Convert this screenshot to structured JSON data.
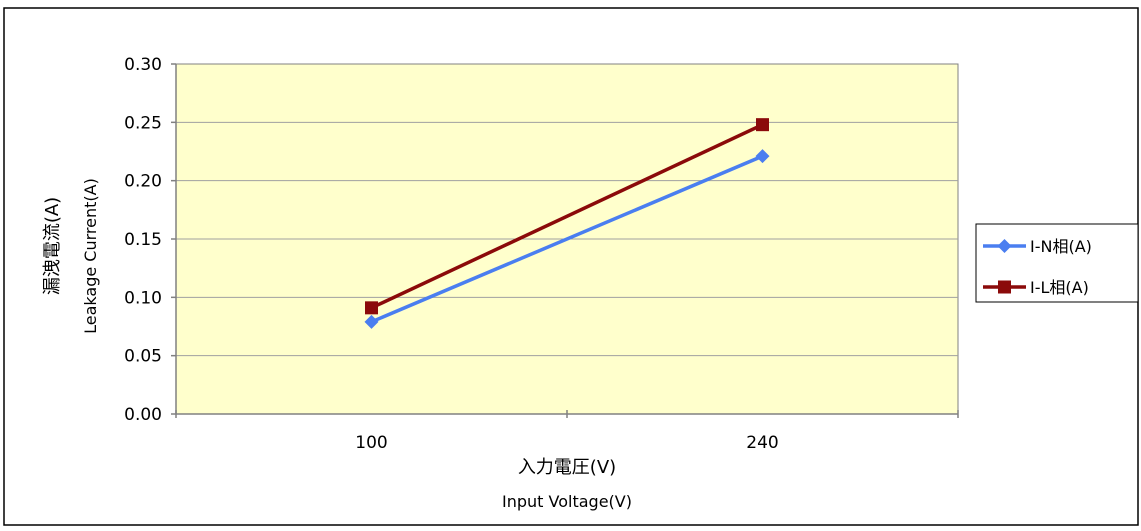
{
  "chart_data": {
    "type": "line",
    "categories": [
      "100",
      "240"
    ],
    "series": [
      {
        "name": "I-N相(A)",
        "values": [
          0.079,
          0.221
        ],
        "color": "#4a7ef0",
        "marker": "diamond"
      },
      {
        "name": "I-L相(A)",
        "values": [
          0.091,
          0.248
        ],
        "color": "#8b0a0a",
        "marker": "square"
      }
    ],
    "xlabel_line1": "入力電圧(V)",
    "xlabel_line2": "Input Voltage(V)",
    "ylabel_line1": "漏洩電流(A)",
    "ylabel_line2": "Leakage Current(A)",
    "ylim": [
      0,
      0.3
    ],
    "yticks": [
      "0.00",
      "0.05",
      "0.10",
      "0.15",
      "0.20",
      "0.25",
      "0.30"
    ],
    "plot_background": "#ffffcc",
    "grid": true,
    "legend_position": "right"
  }
}
